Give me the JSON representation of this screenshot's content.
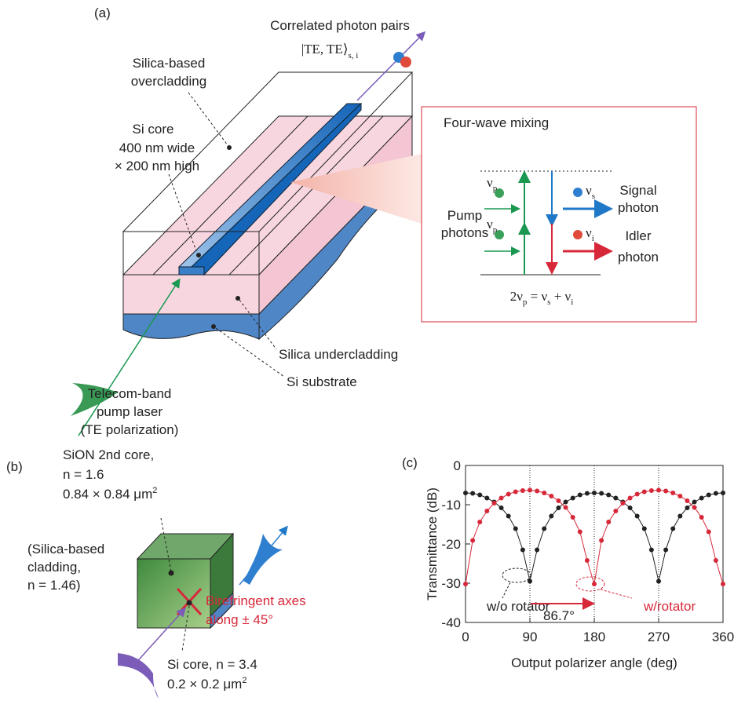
{
  "panel_a": {
    "label": "(a)",
    "output": "Correlated photon pairs",
    "state": "|TE, TE⟩",
    "state_sub": "s, i",
    "overcladding": [
      "Silica-based",
      "overcladding"
    ],
    "core": [
      "Si core",
      "400 nm wide",
      "× 200 nm high"
    ],
    "undercladding": "Silica undercladding",
    "substrate": "Si substrate",
    "pump": [
      "Telecom-band",
      "pump laser",
      "(TE polarization)"
    ],
    "inset": {
      "title": "Four-wave mixing",
      "nu": "ν",
      "p": "p",
      "s": "s",
      "i": "i",
      "pump": [
        "Pump",
        "photons"
      ],
      "signal": [
        "Signal",
        "photon"
      ],
      "idler": [
        "Idler",
        "photon"
      ],
      "equation": [
        "2ν",
        "p",
        " = ν",
        "s",
        " + ν",
        "i"
      ]
    }
  },
  "panel_b": {
    "label": "(b)",
    "sion": [
      "SiON 2nd core,",
      "n = 1.6"
    ],
    "sion_area": "0.84 × 0.84 μm",
    "sup": "2",
    "cladding": [
      "(Silica-based",
      "cladding,",
      "n = 1.46)"
    ],
    "axes": [
      "Birefringent axes",
      "along ± 45°"
    ],
    "si_core": "Si core, n = 3.4",
    "si_area": "0.2 × 0.2 μm"
  },
  "chart_data": {
    "type": "line",
    "label": "(c)",
    "x_label": "Output polarizer angle (deg)",
    "y_label": "Transmittance (dB)",
    "x": [
      0,
      10,
      20,
      30,
      40,
      50,
      60,
      70,
      80,
      90,
      100,
      110,
      120,
      130,
      140,
      150,
      160,
      170,
      180,
      190,
      200,
      210,
      220,
      230,
      240,
      250,
      260,
      270,
      280,
      290,
      300,
      310,
      320,
      330,
      340,
      350,
      360
    ],
    "series": [
      {
        "name": "w/o rotator",
        "color": "#222222",
        "values": [
          -7,
          -7.1,
          -7.5,
          -8.3,
          -9.3,
          -10.8,
          -12.9,
          -16.1,
          -21.5,
          -29.5,
          -21.5,
          -16.1,
          -12.9,
          -10.8,
          -9.3,
          -8.3,
          -7.5,
          -7.1,
          -7,
          -7.1,
          -7.5,
          -8.3,
          -9.3,
          -10.8,
          -12.9,
          -16.1,
          -21.5,
          -29.5,
          -21.5,
          -16.1,
          -12.9,
          -10.8,
          -9.3,
          -8.3,
          -7.5,
          -7.1,
          -7
        ]
      },
      {
        "name": "w/rotator",
        "color": "#d7283a",
        "values": [
          -30.2,
          -19.1,
          -14.4,
          -11.6,
          -9.6,
          -8.3,
          -7.3,
          -6.7,
          -6.4,
          -6.3,
          -6.5,
          -7,
          -7.8,
          -9,
          -10.7,
          -13.2,
          -16.9,
          -24.2,
          -30.2,
          -19.1,
          -14.4,
          -11.6,
          -9.6,
          -8.3,
          -7.3,
          -6.7,
          -6.4,
          -6.3,
          -6.5,
          -7,
          -7.8,
          -9,
          -10.7,
          -13.2,
          -16.9,
          -24.2,
          -30.2
        ]
      }
    ],
    "shift_label": "86.7°",
    "xlim": [
      0,
      360
    ],
    "xticks": [
      0,
      90,
      180,
      270,
      360
    ],
    "ylim": [
      -40,
      0
    ],
    "yticks": [
      0,
      -10,
      -20,
      -30,
      -40
    ],
    "grid_x": true
  }
}
